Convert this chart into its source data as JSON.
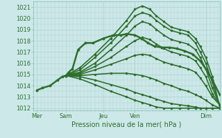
{
  "xlabel": "Pression niveau de la mer( hPa )",
  "bg_color": "#cce8e8",
  "grid_color": "#b0d0d0",
  "line_color": "#2d6e2d",
  "ylim": [
    1011.8,
    1021.5
  ],
  "xlim": [
    0,
    1.0
  ],
  "xtick_labels": [
    "Mer",
    "Sam",
    "Jeu",
    "Ven",
    "Dim"
  ],
  "xtick_positions": [
    0.02,
    0.175,
    0.375,
    0.545,
    0.925
  ],
  "ytick_values": [
    1012,
    1013,
    1014,
    1015,
    1016,
    1017,
    1018,
    1019,
    1020,
    1021
  ],
  "lines": [
    {
      "x": [
        0.02,
        0.05,
        0.09,
        0.13,
        0.155,
        0.175,
        0.19,
        0.21,
        0.24,
        0.28,
        0.32,
        0.375,
        0.43,
        0.47,
        0.5,
        0.545,
        0.58,
        0.615,
        0.65,
        0.69,
        0.73,
        0.77,
        0.81,
        0.855,
        0.895,
        0.925,
        0.96,
        1.0
      ],
      "y": [
        1013.6,
        1013.8,
        1014.0,
        1014.5,
        1014.8,
        1014.9,
        1015.2,
        1015.5,
        1017.2,
        1017.8,
        1017.8,
        1018.2,
        1018.5,
        1018.5,
        1018.6,
        1018.5,
        1018.2,
        1017.8,
        1017.5,
        1017.4,
        1017.4,
        1017.3,
        1017.1,
        1016.8,
        1016.2,
        1015.5,
        1014.5,
        1013.2
      ],
      "lw": 1.8,
      "marker": "o",
      "ms": 1.8,
      "zorder": 5
    },
    {
      "x": [
        0.175,
        0.25,
        0.33,
        0.415,
        0.5,
        0.545,
        0.585,
        0.625,
        0.66,
        0.7,
        0.74,
        0.785,
        0.83,
        0.87,
        0.895,
        0.925,
        0.96,
        1.0
      ],
      "y": [
        1014.9,
        1015.6,
        1016.8,
        1018.2,
        1019.8,
        1020.8,
        1021.1,
        1020.8,
        1020.2,
        1019.7,
        1019.2,
        1019.0,
        1018.8,
        1018.2,
        1017.5,
        1016.5,
        1014.8,
        1012.1
      ],
      "lw": 1.2,
      "marker": "o",
      "ms": 1.5,
      "zorder": 4
    },
    {
      "x": [
        0.175,
        0.25,
        0.33,
        0.415,
        0.5,
        0.545,
        0.585,
        0.625,
        0.66,
        0.7,
        0.74,
        0.785,
        0.83,
        0.87,
        0.895,
        0.925,
        0.96,
        1.0
      ],
      "y": [
        1014.9,
        1015.4,
        1016.5,
        1017.8,
        1019.3,
        1020.2,
        1020.5,
        1020.3,
        1019.8,
        1019.3,
        1018.9,
        1018.7,
        1018.5,
        1017.8,
        1017.0,
        1016.0,
        1014.3,
        1012.2
      ],
      "lw": 1.2,
      "marker": "o",
      "ms": 1.5,
      "zorder": 4
    },
    {
      "x": [
        0.175,
        0.25,
        0.33,
        0.415,
        0.5,
        0.545,
        0.585,
        0.625,
        0.66,
        0.7,
        0.74,
        0.785,
        0.83,
        0.87,
        0.895,
        0.925,
        0.96,
        1.0
      ],
      "y": [
        1014.9,
        1015.2,
        1016.0,
        1017.2,
        1018.5,
        1019.3,
        1019.7,
        1019.5,
        1019.0,
        1018.5,
        1018.1,
        1017.9,
        1017.7,
        1017.2,
        1016.5,
        1015.5,
        1013.8,
        1012.3
      ],
      "lw": 1.2,
      "marker": "o",
      "ms": 1.5,
      "zorder": 4
    },
    {
      "x": [
        0.175,
        0.25,
        0.33,
        0.415,
        0.5,
        0.545,
        0.585,
        0.625,
        0.66,
        0.7,
        0.74,
        0.785,
        0.83,
        0.87,
        0.895,
        0.925,
        0.96,
        1.0
      ],
      "y": [
        1014.9,
        1015.1,
        1015.7,
        1016.5,
        1017.5,
        1018.0,
        1018.3,
        1018.1,
        1017.7,
        1017.3,
        1017.0,
        1016.8,
        1016.6,
        1016.2,
        1015.6,
        1014.8,
        1013.3,
        1012.3
      ],
      "lw": 1.2,
      "marker": "o",
      "ms": 1.5,
      "zorder": 4
    },
    {
      "x": [
        0.175,
        0.25,
        0.33,
        0.415,
        0.5,
        0.545,
        0.585,
        0.625,
        0.66,
        0.7,
        0.74,
        0.785,
        0.83,
        0.87,
        0.895,
        0.925,
        0.96,
        1.0
      ],
      "y": [
        1014.9,
        1015.0,
        1015.4,
        1015.9,
        1016.4,
        1016.7,
        1016.8,
        1016.7,
        1016.4,
        1016.1,
        1015.9,
        1015.7,
        1015.5,
        1015.2,
        1014.7,
        1014.0,
        1013.0,
        1012.3
      ],
      "lw": 1.2,
      "marker": "o",
      "ms": 1.5,
      "zorder": 4
    },
    {
      "x": [
        0.175,
        0.25,
        0.33,
        0.415,
        0.5,
        0.545,
        0.585,
        0.625,
        0.66,
        0.7,
        0.74,
        0.785,
        0.83,
        0.87,
        0.895,
        0.925,
        0.96,
        1.0
      ],
      "y": [
        1014.9,
        1014.9,
        1015.0,
        1015.1,
        1015.1,
        1015.0,
        1014.9,
        1014.7,
        1014.5,
        1014.2,
        1014.0,
        1013.7,
        1013.5,
        1013.2,
        1013.0,
        1012.7,
        1012.3,
        1012.0
      ],
      "lw": 1.2,
      "marker": "o",
      "ms": 1.5,
      "zorder": 4
    },
    {
      "x": [
        0.175,
        0.25,
        0.33,
        0.415,
        0.5,
        0.545,
        0.585,
        0.625,
        0.66,
        0.7,
        0.74,
        0.785,
        0.83,
        0.87,
        0.895,
        0.925,
        0.96,
        1.0
      ],
      "y": [
        1014.9,
        1014.8,
        1014.5,
        1014.1,
        1013.7,
        1013.4,
        1013.2,
        1013.0,
        1012.8,
        1012.6,
        1012.4,
        1012.3,
        1012.2,
        1012.1,
        1012.0,
        1012.0,
        1012.0,
        1012.0
      ],
      "lw": 1.2,
      "marker": "o",
      "ms": 1.5,
      "zorder": 4
    },
    {
      "x": [
        0.175,
        0.25,
        0.33,
        0.415,
        0.5,
        0.545,
        0.585,
        0.625,
        0.66,
        0.7,
        0.74,
        0.785,
        0.83,
        0.87,
        0.895,
        0.925,
        0.96,
        1.0
      ],
      "y": [
        1014.9,
        1014.6,
        1014.1,
        1013.5,
        1013.0,
        1012.7,
        1012.5,
        1012.3,
        1012.1,
        1012.0,
        1012.0,
        1012.0,
        1012.0,
        1012.0,
        1012.0,
        1012.0,
        1012.0,
        1012.0
      ],
      "lw": 1.2,
      "marker": "o",
      "ms": 1.5,
      "zorder": 4
    }
  ]
}
